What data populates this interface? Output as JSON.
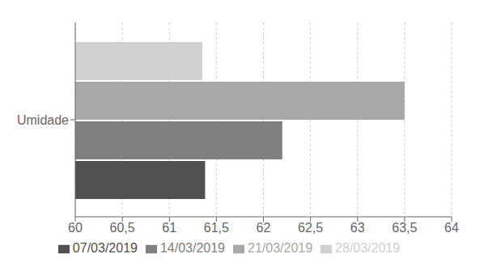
{
  "chart_data": {
    "type": "bar",
    "orientation": "horizontal",
    "categories": [
      "Umidade"
    ],
    "series": [
      {
        "name": "28/03/2019",
        "color": "#d0d0d0",
        "values": [
          61.35
        ]
      },
      {
        "name": "21/03/2019",
        "color": "#a8a8a8",
        "values": [
          63.5
        ]
      },
      {
        "name": "14/03/2019",
        "color": "#808080",
        "values": [
          62.2
        ]
      },
      {
        "name": "07/03/2019",
        "color": "#505050",
        "values": [
          61.38
        ]
      }
    ],
    "xlim": [
      60,
      64
    ],
    "xticks": [
      60,
      {
        "value": 60.5,
        "label": "60,5"
      },
      61,
      {
        "value": 61.5,
        "label": "61,5"
      },
      62,
      {
        "value": 62.5,
        "label": "62,5"
      },
      63,
      {
        "value": 63.5,
        "label": "63,5"
      },
      64
    ],
    "grid": true,
    "legend": "bottom"
  }
}
